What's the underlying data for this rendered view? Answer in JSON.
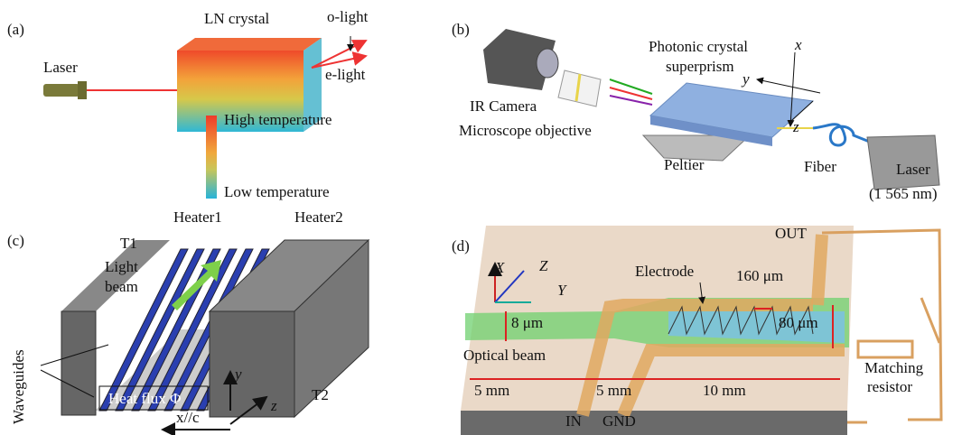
{
  "panels": [
    {
      "label": "(a)",
      "texts": [
        "Laser",
        "LN crystal",
        "o-light",
        "e-light",
        "High temperature",
        "Low temperature"
      ]
    },
    {
      "label": "(b)",
      "texts": [
        "IR Camera",
        "Microscope objective",
        "Photonic crystal",
        "superprism",
        "x",
        "y",
        "z",
        "Peltier",
        "Fiber",
        "Laser",
        "(1 565 nm)"
      ]
    },
    {
      "label": "(c)",
      "texts": [
        "Heater1",
        "Heater2",
        "T1",
        "Light",
        "beam",
        "Waveguides",
        "Heat flux Φ",
        "y",
        "z",
        "T2",
        "x//c"
      ]
    },
    {
      "label": "(d)",
      "texts": [
        "OUT",
        "X",
        "Z",
        "Y",
        "Electrode",
        "160 μm",
        "8 μm",
        "80 μm",
        "Optical beam",
        "Matching",
        "resistor",
        "5 mm",
        "5 mm",
        "10 mm",
        "IN",
        "GND"
      ]
    }
  ]
}
